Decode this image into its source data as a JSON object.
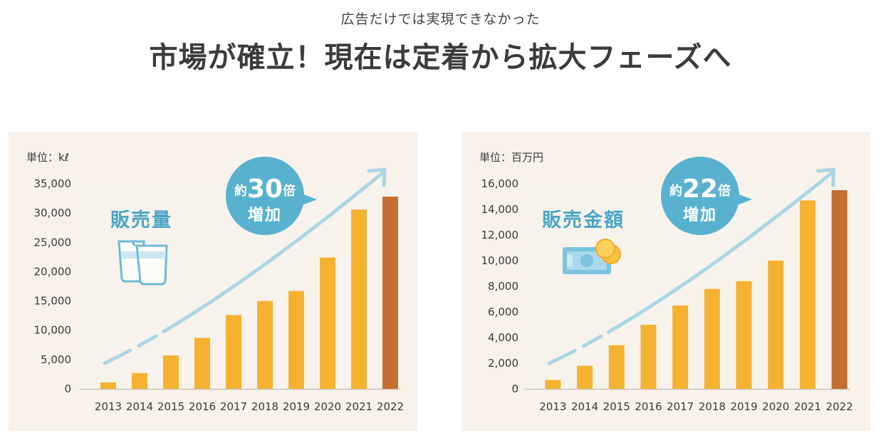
{
  "header": {
    "subtitle": "広告だけでは実現できなかった",
    "title": "市場が確立！現在は定着から拡大フェーズへ"
  },
  "colors": {
    "bar": "#f5b230",
    "bar_highlight": "#c36f31",
    "arrow": "#a9d6e6",
    "bubble": "#58b2cf",
    "metric_text": "#4aa6c8",
    "panel_bg": "#f8f2ea"
  },
  "left_panel": {
    "unit_label": "単位：kℓ",
    "metric_label": "販売量",
    "icon": "measuring-cups-icon",
    "bubble": {
      "prefix": "約",
      "number": "30",
      "suffix": "倍",
      "line2": "増加"
    }
  },
  "right_panel": {
    "unit_label": "単位：百万円",
    "metric_label": "販売金額",
    "icon": "money-coins-icon",
    "bubble": {
      "prefix": "約",
      "number": "22",
      "suffix": "倍",
      "line2": "増加"
    }
  },
  "chart_data": [
    {
      "type": "bar",
      "categories": [
        "2013",
        "2014",
        "2015",
        "2016",
        "2017",
        "2018",
        "2019",
        "2020",
        "2021",
        "2022"
      ],
      "values": [
        1100,
        2700,
        5700,
        8700,
        12600,
        15000,
        16700,
        22400,
        30600,
        32800
      ],
      "ylim": [
        0,
        35000
      ],
      "yticks": [
        0,
        5000,
        10000,
        15000,
        20000,
        25000,
        30000,
        35000
      ],
      "ytick_labels": [
        "0",
        "5,000",
        "10,000",
        "15,000",
        "20,000",
        "25,000",
        "30,000",
        "35,000"
      ],
      "highlight_index": 9,
      "grid": false
    },
    {
      "type": "bar",
      "categories": [
        "2013",
        "2014",
        "2015",
        "2016",
        "2017",
        "2018",
        "2019",
        "2020",
        "2021",
        "2022"
      ],
      "values": [
        700,
        1800,
        3400,
        5000,
        6500,
        7800,
        8400,
        10000,
        14700,
        15500
      ],
      "ylim": [
        0,
        16000
      ],
      "yticks": [
        0,
        2000,
        4000,
        6000,
        8000,
        10000,
        12000,
        14000,
        16000
      ],
      "ytick_labels": [
        "0",
        "2,000",
        "4,000",
        "6,000",
        "8,000",
        "10,000",
        "12,000",
        "14,000",
        "16,000"
      ],
      "highlight_index": 9,
      "grid": false
    }
  ]
}
